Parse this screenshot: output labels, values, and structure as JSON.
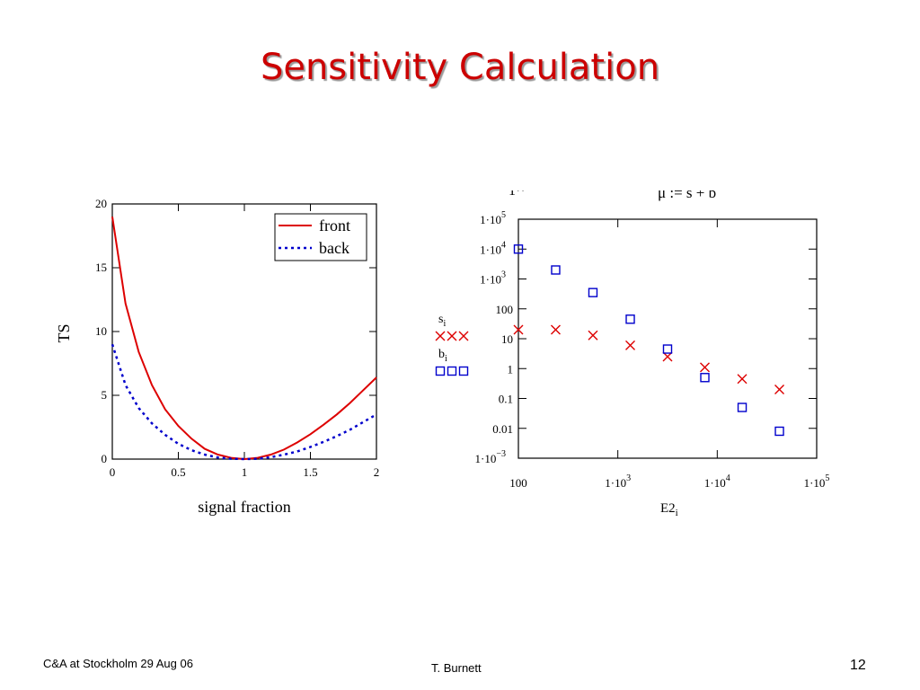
{
  "slide": {
    "title": "Sensitivity Calculation",
    "footer_left": "C&A at Stockholm  29 Aug 06",
    "footer_center": "T. Burnett",
    "page_number": "12"
  },
  "colors": {
    "title": "#cc0000",
    "front": "#dd0000",
    "back": "#0000cc",
    "s_marker": "#dd0000",
    "b_marker": "#0000cc"
  },
  "chart_data": [
    {
      "type": "line",
      "xlabel": "signal fraction",
      "ylabel": "TS",
      "xlim": [
        0,
        2
      ],
      "ylim": [
        0,
        20
      ],
      "xticks": [
        "0",
        "0.5",
        "1",
        "1.5",
        "2"
      ],
      "yticks": [
        "0",
        "5",
        "10",
        "15",
        "20"
      ],
      "legend": "top-right",
      "series": [
        {
          "name": "front",
          "style": "solid",
          "x": [
            0,
            0.1,
            0.2,
            0.3,
            0.4,
            0.5,
            0.6,
            0.7,
            0.8,
            0.9,
            1.0,
            1.1,
            1.2,
            1.3,
            1.4,
            1.5,
            1.6,
            1.7,
            1.8,
            1.9,
            2.0
          ],
          "y": [
            19.0,
            12.2,
            8.4,
            5.8,
            3.9,
            2.6,
            1.6,
            0.8,
            0.35,
            0.1,
            0.0,
            0.1,
            0.35,
            0.75,
            1.3,
            1.95,
            2.7,
            3.5,
            4.4,
            5.4,
            6.4
          ]
        },
        {
          "name": "back",
          "style": "dotted",
          "x": [
            0,
            0.1,
            0.2,
            0.3,
            0.4,
            0.5,
            0.6,
            0.7,
            0.8,
            0.9,
            1.0,
            1.1,
            1.2,
            1.3,
            1.4,
            1.5,
            1.6,
            1.7,
            1.8,
            1.9,
            2.0
          ],
          "y": [
            9.0,
            5.8,
            4.0,
            2.8,
            1.9,
            1.2,
            0.7,
            0.35,
            0.12,
            0.03,
            0.0,
            0.03,
            0.15,
            0.35,
            0.6,
            0.95,
            1.35,
            1.8,
            2.3,
            2.9,
            3.5
          ]
        }
      ]
    },
    {
      "type": "scatter",
      "xlabel": "E2",
      "xlabel_sub": "i",
      "x_scale": "log",
      "y_scale": "log",
      "xlim": [
        100,
        100000
      ],
      "ylim": [
        0.001,
        100000
      ],
      "header_fragment": "1··",
      "header_formula": "μ := s + b",
      "xticks": [
        {
          "value": 100,
          "base": "100",
          "exp": ""
        },
        {
          "value": 1000,
          "base": "1·10",
          "exp": "3"
        },
        {
          "value": 10000,
          "base": "1·10",
          "exp": "4"
        },
        {
          "value": 100000,
          "base": "1·10",
          "exp": "5"
        }
      ],
      "yticks": [
        {
          "value": 100000,
          "base": "1·10",
          "exp": "5"
        },
        {
          "value": 10000,
          "base": "1·10",
          "exp": "4"
        },
        {
          "value": 1000,
          "base": "1·10",
          "exp": "3"
        },
        {
          "value": 100,
          "base": "100",
          "exp": ""
        },
        {
          "value": 10,
          "base": "10",
          "exp": ""
        },
        {
          "value": 1,
          "base": "1",
          "exp": ""
        },
        {
          "value": 0.1,
          "base": "0.1",
          "exp": ""
        },
        {
          "value": 0.01,
          "base": "0.01",
          "exp": ""
        },
        {
          "value": 0.001,
          "base": "1·10",
          "exp": "−3"
        }
      ],
      "series": [
        {
          "name": "s",
          "name_sub": "i",
          "marker": "x",
          "x": [
            100,
            237,
            562,
            1334,
            3162,
            7500,
            17800,
            42200
          ],
          "y": [
            20,
            20,
            13,
            6,
            2.5,
            1.1,
            0.45,
            0.2
          ]
        },
        {
          "name": "b",
          "name_sub": "i",
          "marker": "square",
          "x": [
            100,
            237,
            562,
            1334,
            3162,
            7500,
            17800,
            42200
          ],
          "y": [
            10000,
            2000,
            350,
            45,
            4.5,
            0.5,
            0.05,
            0.008
          ]
        }
      ]
    }
  ]
}
